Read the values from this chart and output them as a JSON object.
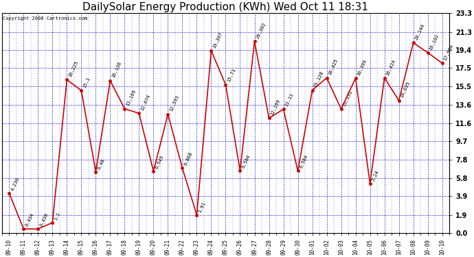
{
  "title": "DailySolar Energy Production (KWh) Wed Oct 11 18:31",
  "copyright": "Copyright 2008 Cartronics.com",
  "x_labels": [
    "09-10",
    "09-11",
    "09-12",
    "09-13",
    "09-14",
    "09-15",
    "09-16",
    "09-17",
    "09-18",
    "09-19",
    "09-20",
    "09-21",
    "09-22",
    "09-23",
    "09-24",
    "09-25",
    "09-26",
    "09-27",
    "09-28",
    "09-29",
    "09-30",
    "10-01",
    "10-02",
    "10-03",
    "10-04",
    "10-05",
    "10-06",
    "10-07",
    "10-08",
    "10-09",
    "10-10"
  ],
  "y_values": [
    4.23,
    0.434,
    0.438,
    1.1,
    16.225,
    15.1,
    6.48,
    16.136,
    13.169,
    12.674,
    6.549,
    12.593,
    6.868,
    1.91,
    19.307,
    15.71,
    6.584,
    20.302,
    12.169,
    13.11,
    6.584,
    15.128,
    16.425,
    13.131,
    16.399,
    5.24,
    16.424,
    14.035,
    20.144,
    19.102,
    17.984
  ],
  "point_labels": [
    "4.230",
    "0.434",
    "0.438",
    "1.1",
    "16.225",
    "15.1",
    "6.48",
    "16.136",
    "13.169",
    "12.674",
    "6.549",
    "12.593",
    "6.868",
    "1.91",
    "19.307",
    "15.71",
    "6.584",
    "20.302",
    "12.169",
    "13.11",
    "6.584",
    "15.128",
    "16.425",
    "13.131",
    "16.399",
    "5.24",
    "16.424",
    "14.035",
    "20.144",
    "19.102",
    "17.984"
  ],
  "y_ticks": [
    0.0,
    1.9,
    3.9,
    5.8,
    7.8,
    9.7,
    11.6,
    13.6,
    15.5,
    17.5,
    19.4,
    21.3,
    23.3
  ],
  "ylim": [
    0.0,
    23.3
  ],
  "line_color": "#cc0000",
  "marker_color": "#cc0000",
  "bg_color": "#ffffff",
  "grid_color": "#0000cc",
  "title_fontsize": 11,
  "copyright_fontsize": 5,
  "xlabel_fontsize": 5.5,
  "ylabel_fontsize": 7,
  "point_label_fontsize": 5,
  "point_label_rotation": 65
}
